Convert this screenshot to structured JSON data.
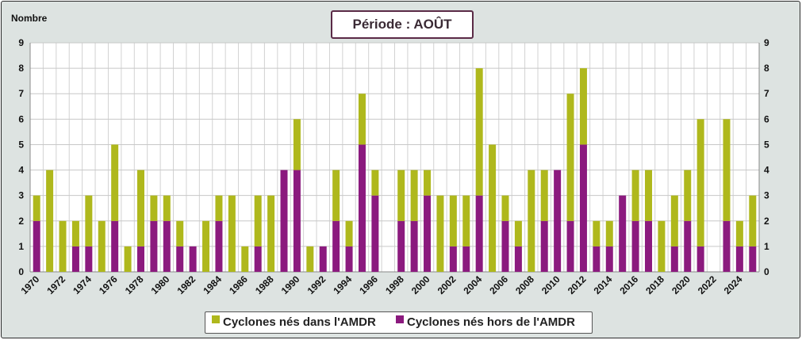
{
  "chart_data": {
    "type": "bar",
    "stacked": true,
    "title": "Période : AOÛT",
    "ylabel": "Nombre",
    "xlabel": "",
    "ylim": [
      0,
      9
    ],
    "yticks": [
      0,
      1,
      2,
      3,
      4,
      5,
      6,
      7,
      8,
      9
    ],
    "grid": true,
    "legend_position": "bottom",
    "categories": [
      1970,
      1971,
      1972,
      1973,
      1974,
      1975,
      1976,
      1977,
      1978,
      1979,
      1980,
      1981,
      1982,
      1983,
      1984,
      1985,
      1986,
      1987,
      1988,
      1989,
      1990,
      1991,
      1992,
      1993,
      1994,
      1995,
      1996,
      1997,
      1998,
      1999,
      2000,
      2001,
      2002,
      2003,
      2004,
      2005,
      2006,
      2007,
      2008,
      2009,
      2010,
      2011,
      2012,
      2013,
      2014,
      2015,
      2016,
      2017,
      2018,
      2019,
      2020,
      2021,
      2022,
      2023,
      2024,
      2025
    ],
    "xtick_labels": [
      "1970",
      "1972",
      "1974",
      "1976",
      "1978",
      "1980",
      "1982",
      "1984",
      "1986",
      "1988",
      "1990",
      "1992",
      "1994",
      "1996",
      "1998",
      "2000",
      "2002",
      "2004",
      "2006",
      "2008",
      "2010",
      "2012",
      "2014",
      "2016",
      "2018",
      "2020",
      "2022",
      "2024"
    ],
    "series": [
      {
        "name": "Cyclones nés hors de l'AMDR",
        "color": "#8b1a7e",
        "values": [
          2,
          0,
          0,
          1,
          1,
          0,
          2,
          0,
          1,
          2,
          2,
          1,
          1,
          0,
          2,
          0,
          0,
          1,
          0,
          4,
          4,
          0,
          1,
          2,
          1,
          5,
          3,
          0,
          2,
          2,
          3,
          0,
          1,
          1,
          3,
          0,
          2,
          1,
          0,
          2,
          4,
          2,
          5,
          1,
          1,
          3,
          2,
          2,
          0,
          1,
          2,
          1,
          0,
          2,
          1,
          1
        ]
      },
      {
        "name": "Cyclones nés dans l'AMDR",
        "color": "#afb81c",
        "values": [
          1,
          4,
          2,
          1,
          2,
          2,
          3,
          1,
          3,
          1,
          1,
          1,
          0,
          2,
          1,
          3,
          1,
          2,
          3,
          0,
          2,
          1,
          0,
          2,
          1,
          2,
          1,
          0,
          2,
          2,
          1,
          3,
          2,
          2,
          5,
          5,
          1,
          1,
          4,
          2,
          0,
          5,
          3,
          1,
          1,
          0,
          2,
          2,
          2,
          2,
          2,
          5,
          0,
          4,
          1,
          2
        ]
      }
    ]
  },
  "legend": {
    "in_label": "Cyclones nés dans l'AMDR",
    "out_label": "Cyclones nés hors de l'AMDR"
  }
}
